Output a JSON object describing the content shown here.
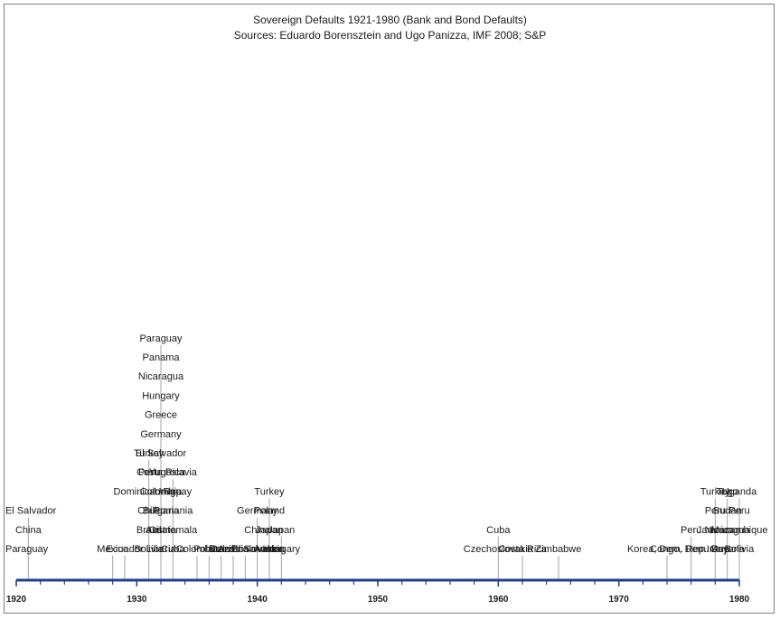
{
  "chart_data": {
    "type": "timeline",
    "title": "Sovereign Defaults 1921-1980 (Bank and Bond Defaults)",
    "subtitle": "Sources: Eduardo Borensztein and Ugo Panizza, IMF 2008; S&P",
    "xlim": [
      1920,
      1980
    ],
    "ticks": [
      "1920",
      "1930",
      "1940",
      "1950",
      "1960",
      "1970",
      "1980"
    ],
    "tick_values": [
      1920,
      1930,
      1940,
      1950,
      1960,
      1970,
      1980
    ],
    "axis_color": "#1f3f8f",
    "events": [
      {
        "year": 1921,
        "countries": [
          "Paraguay",
          "China",
          "El Salvador"
        ]
      },
      {
        "year": 1928,
        "countries": [
          "Mexico"
        ]
      },
      {
        "year": 1929,
        "countries": [
          "Ecuador"
        ]
      },
      {
        "year": 1931,
        "countries": [
          "Bolivia",
          "Brazil",
          "Chile",
          "Dominican Rep.",
          "Peru",
          "Turkey"
        ]
      },
      {
        "year": 1932,
        "countries": [
          "Liberia",
          "Austria",
          "Bulgaria",
          "Colombia",
          "Costa Rica",
          "El Salvador",
          "Germany",
          "Greece",
          "Hungary",
          "Nicaragua",
          "Panama",
          "Paraguay"
        ]
      },
      {
        "year": 1933,
        "countries": [
          "Cuba",
          "Guatemala",
          "Romania",
          "Uruguay",
          "Yugoslavia"
        ]
      },
      {
        "year": 1935,
        "countries": [
          "Colombia"
        ]
      },
      {
        "year": 1936,
        "countries": [
          "Poland"
        ]
      },
      {
        "year": 1937,
        "countries": [
          "Brazil"
        ]
      },
      {
        "year": 1938,
        "countries": [
          "Austria"
        ]
      },
      {
        "year": 1939,
        "countries": [
          "Czechoslovakia"
        ]
      },
      {
        "year": 1940,
        "countries": [
          "El Salvador",
          "China",
          "Germany"
        ]
      },
      {
        "year": 1941,
        "countries": [
          "Austria",
          "Japan",
          "Poland",
          "Turkey"
        ]
      },
      {
        "year": 1942,
        "countries": [
          "Hungary",
          "Japan"
        ]
      },
      {
        "year": 1960,
        "countries": [
          "Czechoslovakia",
          "Cuba"
        ]
      },
      {
        "year": 1962,
        "countries": [
          "Costa Rica"
        ]
      },
      {
        "year": 1965,
        "countries": [
          "Zimbabwe"
        ]
      },
      {
        "year": 1974,
        "countries": [
          "Korea, Dem. Rep."
        ]
      },
      {
        "year": 1976,
        "countries": [
          "Congo, Dem. Rep.",
          "Peru"
        ]
      },
      {
        "year": 1978,
        "countries": [
          "Iran",
          "Jamaica",
          "Peru",
          "Turkey"
        ]
      },
      {
        "year": 1979,
        "countries": [
          "Guyana",
          "Nicaragua",
          "Sudan",
          "Togo"
        ]
      },
      {
        "year": 1980,
        "countries": [
          "Bolivia",
          "Mozambique",
          "Peru",
          "Uganda"
        ]
      }
    ]
  }
}
